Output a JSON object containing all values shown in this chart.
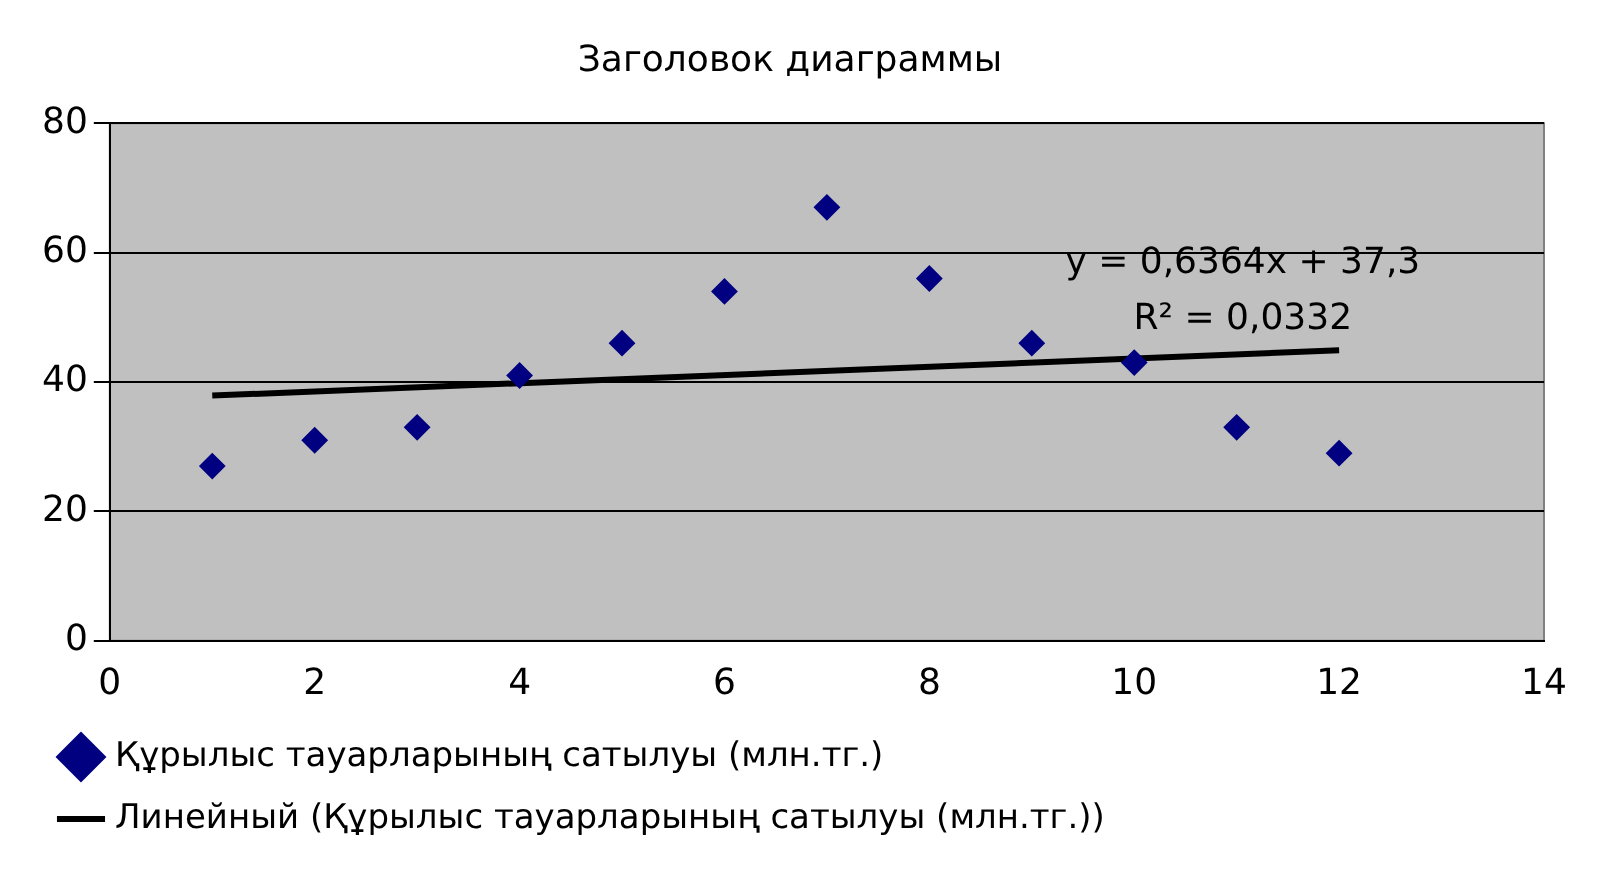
{
  "chart_data": {
    "type": "scatter",
    "title": "Заголовок диаграммы",
    "x": [
      1,
      2,
      3,
      4,
      5,
      6,
      7,
      8,
      9,
      10,
      11,
      12
    ],
    "series": [
      {
        "name": "Құрылыс тауарларының сатылуы (млн.тг.)",
        "color": "#000080",
        "marker": "diamond",
        "values": [
          27,
          31,
          33,
          41,
          46,
          54,
          67,
          56,
          46,
          43,
          33,
          29
        ]
      },
      {
        "type": "line",
        "name": "Линейный (Құрылыс тауарларының сатылуы (млн.тг.))",
        "color": "#000000",
        "marker": "none",
        "x": [
          1,
          12
        ],
        "values": [
          37.9,
          44.9
        ]
      }
    ],
    "xlim": [
      0,
      14
    ],
    "xticks": [
      0,
      2,
      4,
      6,
      8,
      10,
      12,
      14
    ],
    "ylim": [
      0,
      80
    ],
    "yticks": [
      0,
      20,
      40,
      60,
      80
    ],
    "grid": "y",
    "legend": "bottom",
    "annotations": [
      "y = 0,6364x + 37,3",
      "R² = 0,0332"
    ]
  }
}
